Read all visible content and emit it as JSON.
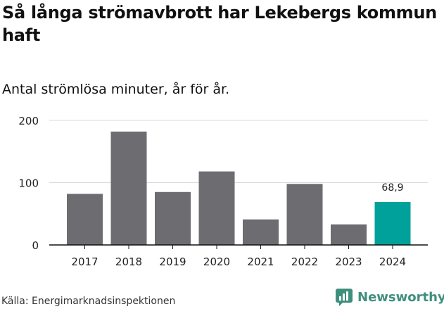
{
  "header": {
    "title": "Så långa strömavbrott har Lekebergs kommun haft",
    "subtitle": "Antal strömlösa minuter, år för år."
  },
  "footer": {
    "source": "Källa: Energimarknadsinspektionen",
    "brand": "Newsworthy"
  },
  "colors": {
    "bar": "#6d6c70",
    "highlight": "#00a19a",
    "grid": "#d9d9d9",
    "brand": "#3f8f7e"
  },
  "chart_data": {
    "type": "bar",
    "title": "Så långa strömavbrott har Lekebergs kommun haft",
    "subtitle": "Antal strömlösa minuter, år för år.",
    "xlabel": "",
    "ylabel": "",
    "categories": [
      "2017",
      "2018",
      "2019",
      "2020",
      "2021",
      "2022",
      "2023",
      "2024"
    ],
    "values": [
      82,
      182,
      85,
      118,
      41,
      98,
      33,
      68.9
    ],
    "highlight_index": 7,
    "data_labels": [
      {
        "index": 7,
        "text": "68,9"
      }
    ],
    "ylim": [
      0,
      200
    ],
    "yticks": [
      0,
      100,
      200
    ],
    "grid": true
  }
}
